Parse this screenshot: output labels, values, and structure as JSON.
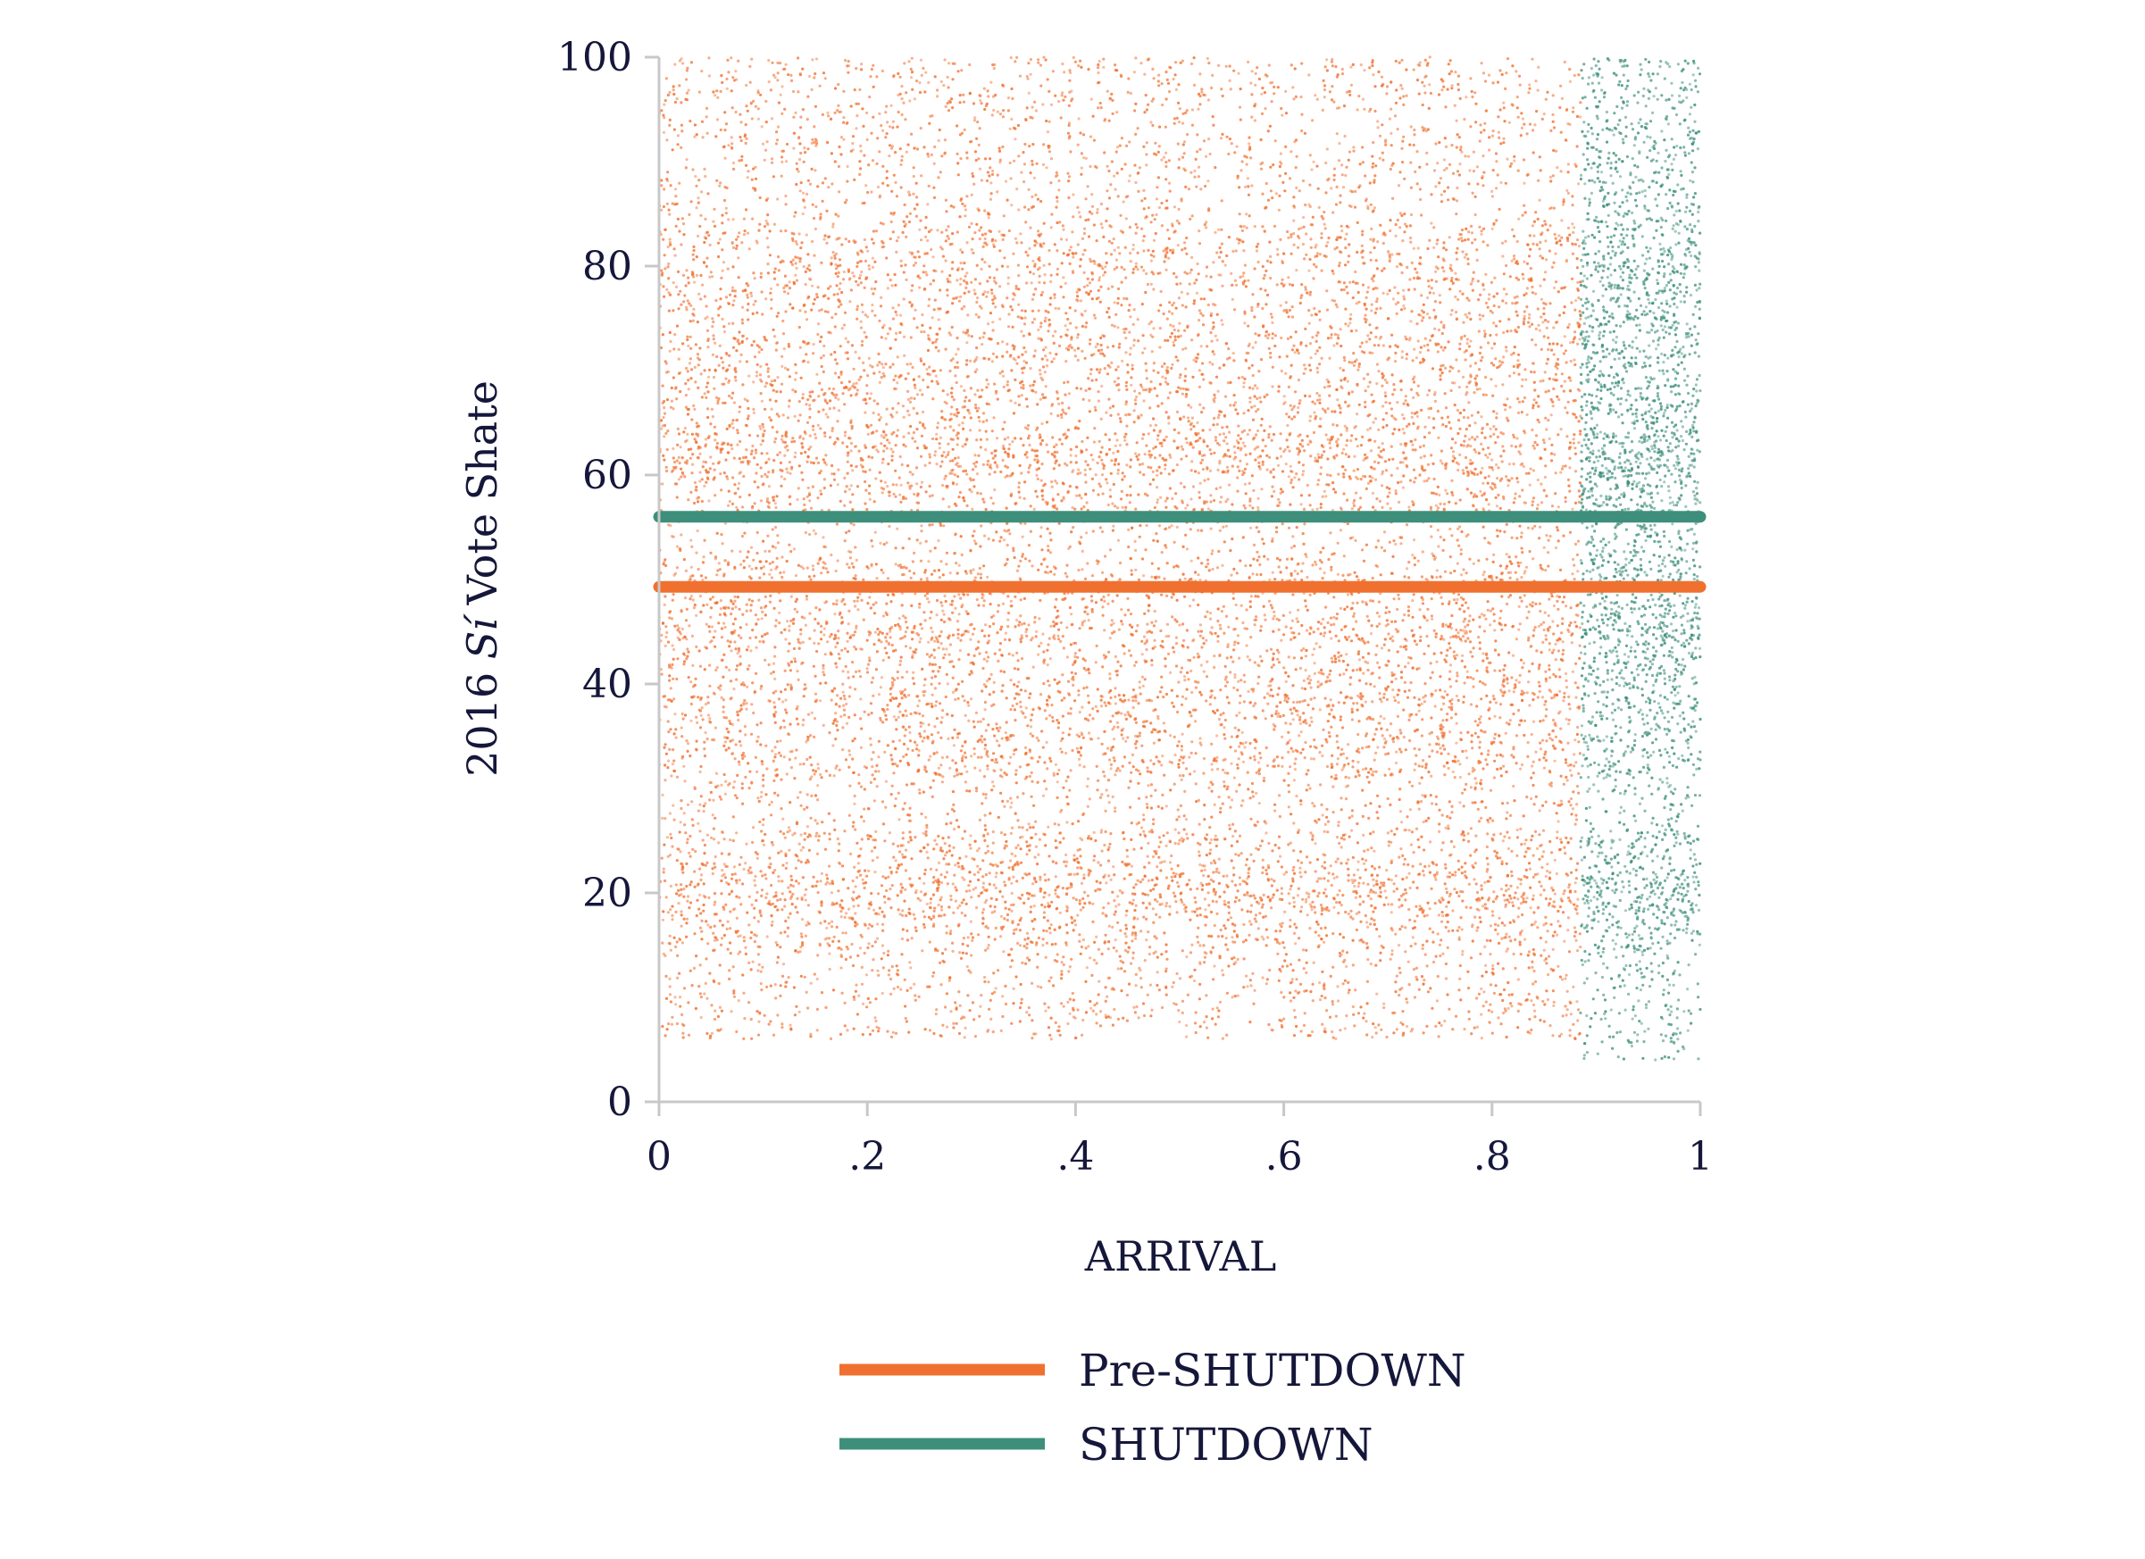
{
  "chart_data": {
    "type": "scatter",
    "xlabel": "ARRIVAL",
    "ylabel_parts": [
      "2016 ",
      "Sí",
      " Vote Shate"
    ],
    "xlim": [
      0,
      1
    ],
    "ylim": [
      0,
      100
    ],
    "x_ticks": [
      {
        "value": 0,
        "label": "0"
      },
      {
        "value": 0.2,
        "label": ".2"
      },
      {
        "value": 0.4,
        "label": ".4"
      },
      {
        "value": 0.6,
        "label": ".6"
      },
      {
        "value": 0.8,
        "label": ".8"
      },
      {
        "value": 1,
        "label": "1"
      }
    ],
    "y_ticks": [
      {
        "value": 0,
        "label": "0"
      },
      {
        "value": 20,
        "label": "20"
      },
      {
        "value": 40,
        "label": "40"
      },
      {
        "value": 60,
        "label": "60"
      },
      {
        "value": 80,
        "label": "80"
      },
      {
        "value": 100,
        "label": "100"
      }
    ],
    "grid": false,
    "legend_position": "bottom",
    "series": [
      {
        "name": "Pre-SHUTDOWN",
        "color": "#f07030",
        "scatter_x_range": [
          0,
          0.885
        ],
        "scatter_y_range": [
          6,
          100
        ],
        "mean": 49.3
      },
      {
        "name": "SHUTDOWN",
        "color": "#3d8f7b",
        "scatter_x_range": [
          0.885,
          1
        ],
        "scatter_y_range": [
          4,
          100
        ],
        "mean": 56.0
      }
    ]
  }
}
